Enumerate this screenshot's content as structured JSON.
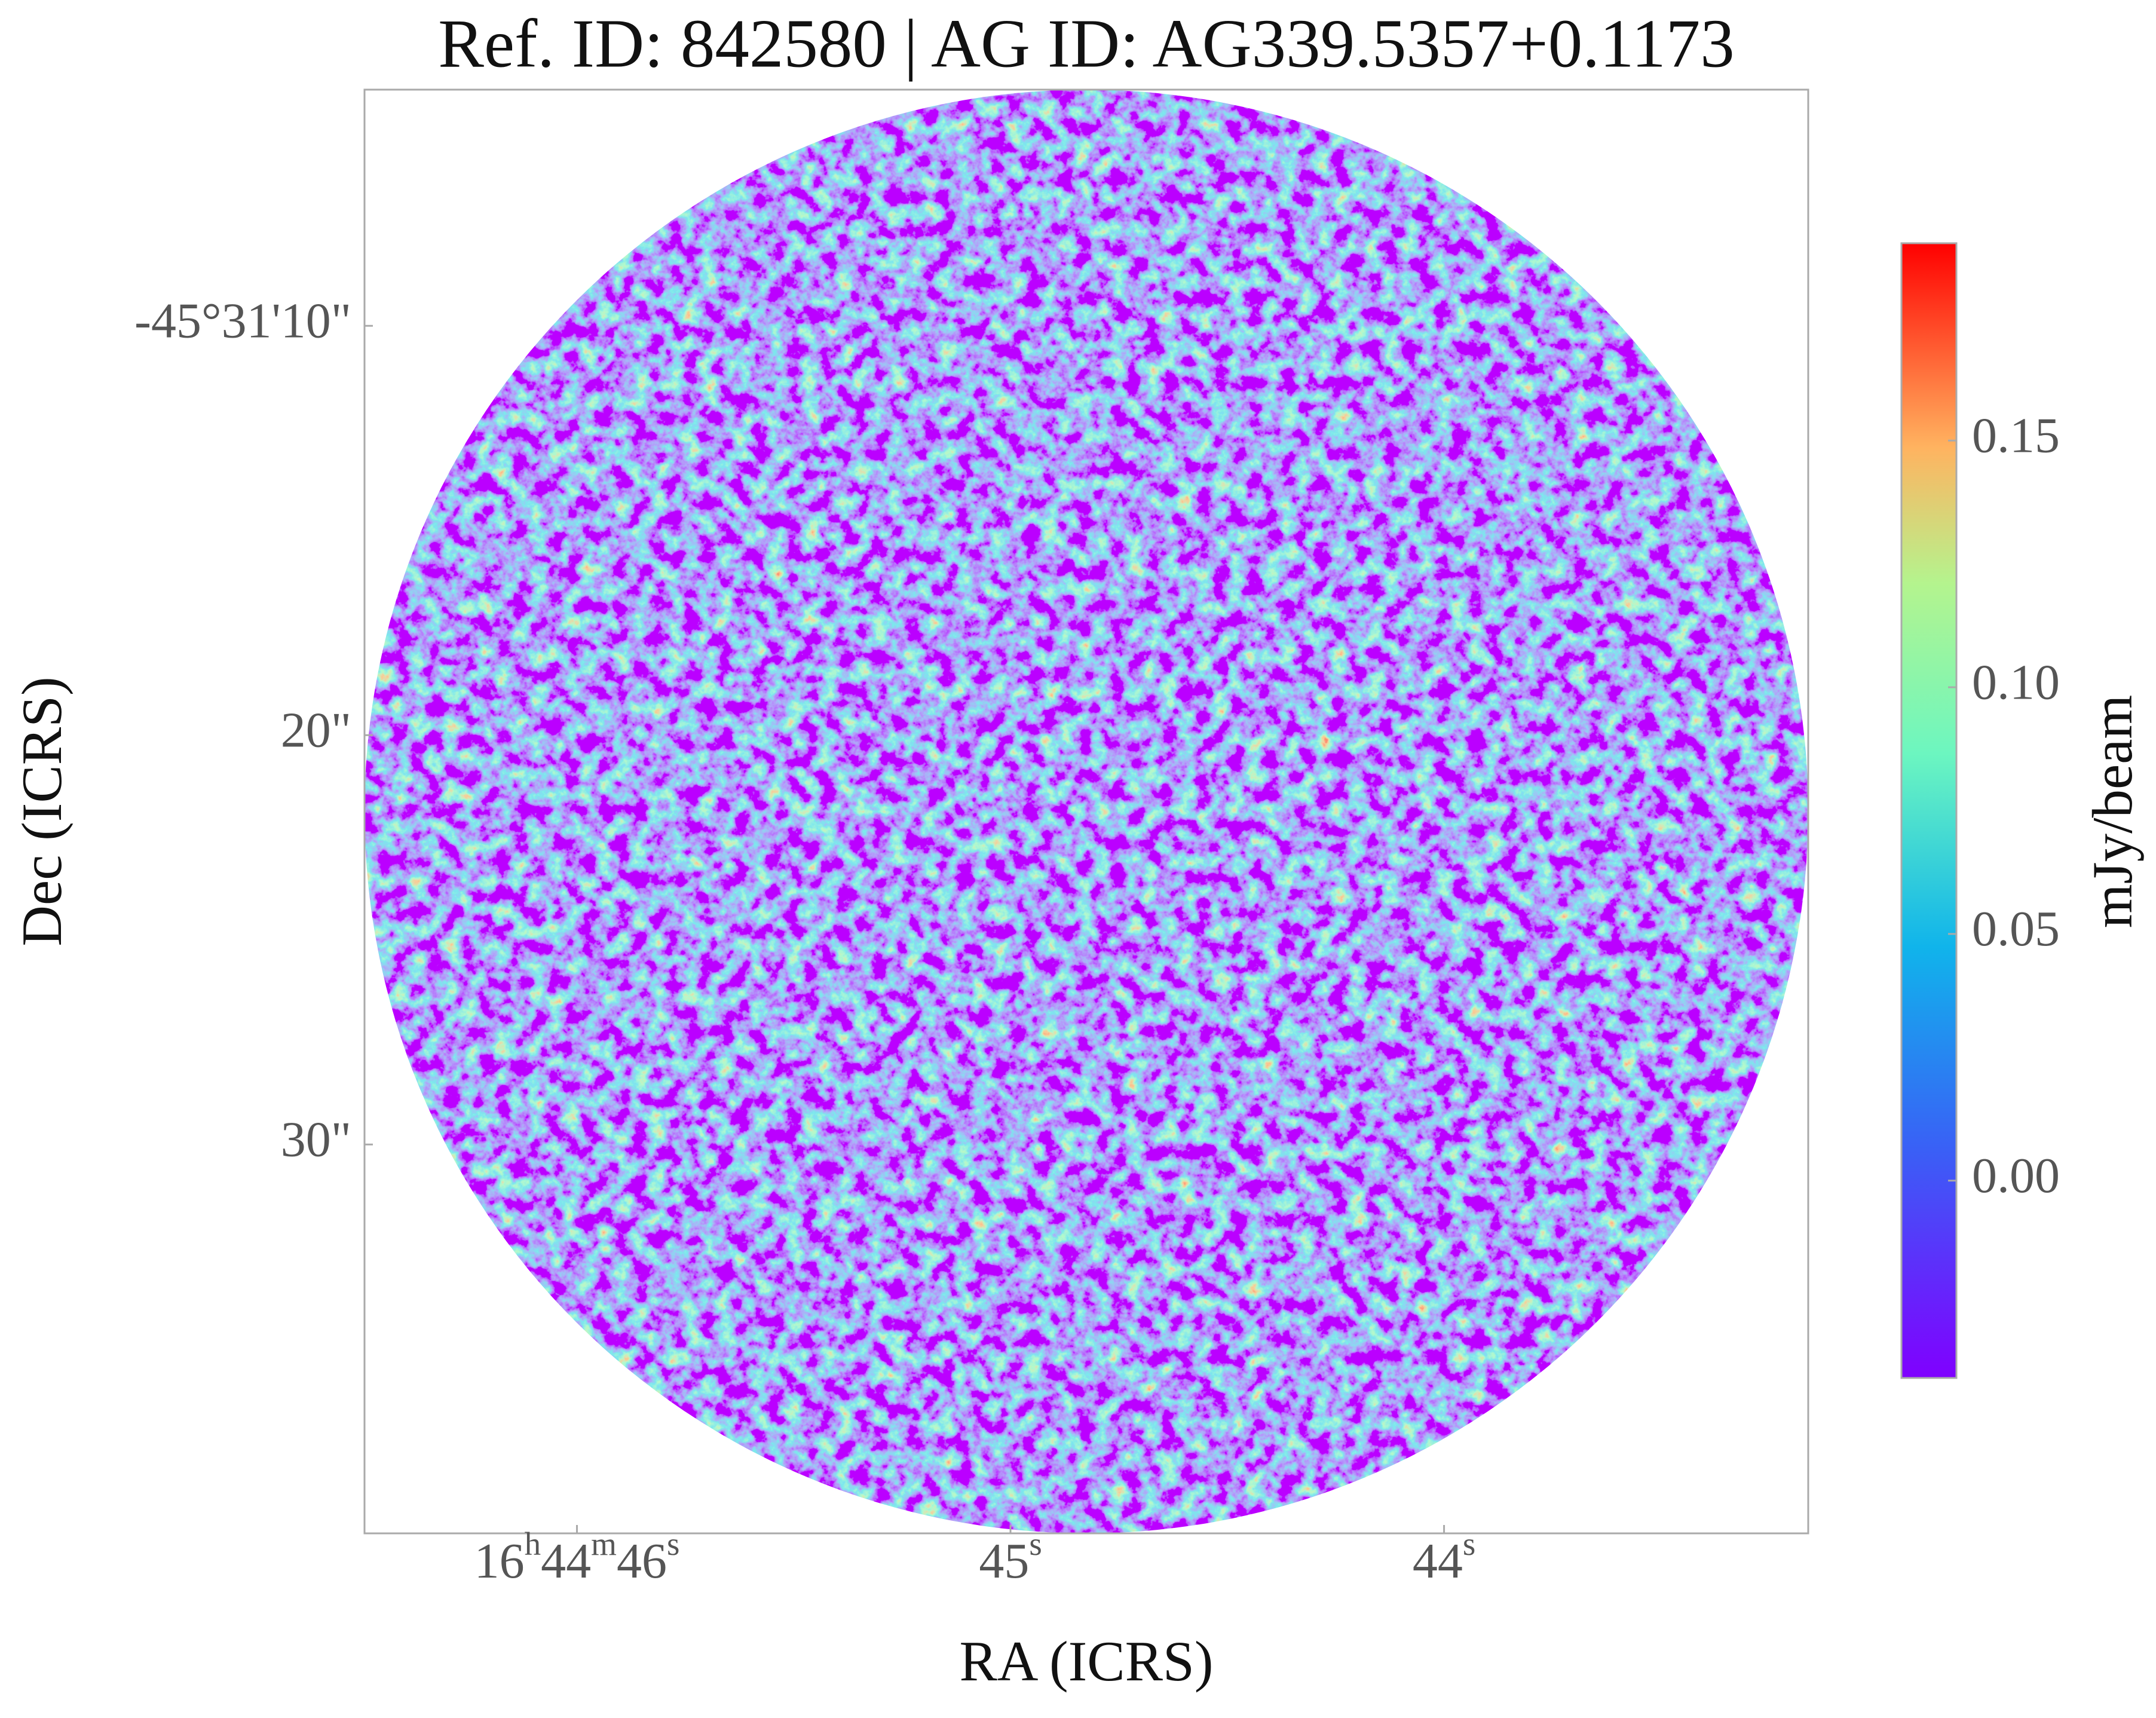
{
  "chart_data": {
    "type": "image",
    "title": "Ref. ID: 842580 | AG ID: AG339.5357+0.1173",
    "x_label": "RA (ICRS)",
    "y_label": "Dec (ICRS)",
    "xlim": [
      46.49,
      43.16
    ],
    "xticks": [
      {
        "value": 46,
        "label": "16h44m46s"
      },
      {
        "value": 45,
        "label": "45s"
      },
      {
        "value": 44,
        "label": "44s"
      }
    ],
    "ylim": [
      39.5,
      4.23
    ],
    "yticks": [
      {
        "value": 10,
        "label": "-45°31'10\""
      },
      {
        "value": 20,
        "label": "20\""
      },
      {
        "value": 30,
        "label": "30\""
      }
    ],
    "colorbar": {
      "label": "mJy/beam",
      "colormap": "rainbow",
      "lim": [
        -0.04,
        0.19
      ],
      "ticks": [
        {
          "value": 0,
          "label": "0.00"
        },
        0.05,
        {
          "value": 0.1,
          "label": "0.10"
        },
        0.15
      ]
    }
  }
}
